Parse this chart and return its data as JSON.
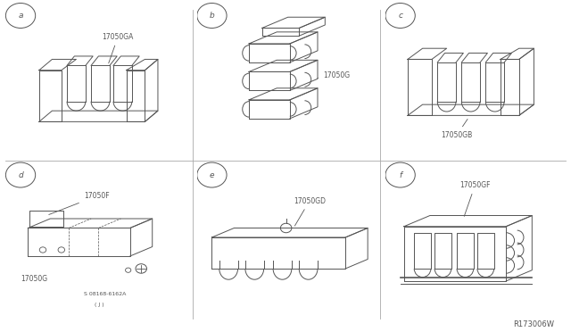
{
  "bg_color": "#ffffff",
  "lc": "#555555",
  "footer": "R173006W",
  "fig_w": 6.4,
  "fig_h": 3.72,
  "panel_labels": [
    "a",
    "b",
    "c",
    "d",
    "e",
    "f"
  ],
  "part_labels": [
    "17050GA",
    "17050G",
    "17050GB",
    "17050F",
    "17050GD",
    "17050GF"
  ],
  "extra_d": [
    "17050G",
    "S 08168-6162A",
    "( J )"
  ]
}
